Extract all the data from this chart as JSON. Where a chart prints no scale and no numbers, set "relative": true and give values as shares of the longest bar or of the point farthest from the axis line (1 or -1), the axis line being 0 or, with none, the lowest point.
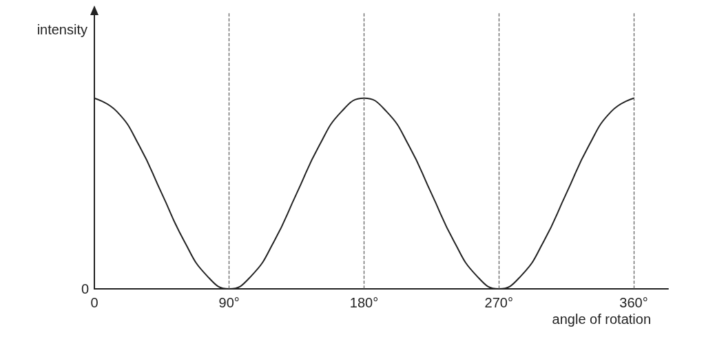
{
  "chart_data": {
    "type": "line",
    "xlabel": "angle of rotation",
    "ylabel": "intensity",
    "relative": true,
    "x": [
      0,
      15,
      30,
      45,
      60,
      75,
      90,
      105,
      120,
      135,
      150,
      165,
      180,
      195,
      210,
      225,
      240,
      255,
      270,
      285,
      300,
      315,
      330,
      345,
      360
    ],
    "series": [
      {
        "color": "#222222",
        "values": [
          1,
          0.93,
          0.75,
          0.5,
          0.25,
          0.07,
          0,
          0.07,
          0.25,
          0.5,
          0.75,
          0.93,
          1,
          0.93,
          0.75,
          0.5,
          0.25,
          0.07,
          0,
          0.07,
          0.25,
          0.5,
          0.75,
          0.93,
          1
        ]
      }
    ],
    "xlim": [
      0,
      383
    ],
    "xticks": [
      0,
      {
        "value": 90,
        "label": "90°"
      },
      {
        "value": 180,
        "label": "180°"
      },
      {
        "value": 270,
        "label": "270°"
      },
      {
        "value": 360,
        "label": "360°"
      }
    ],
    "ref_lines": [
      {
        "axis": "x",
        "value": 90,
        "color": "#555555",
        "line_style": "dashed"
      },
      {
        "axis": "x",
        "value": 180,
        "color": "#555555",
        "line_style": "dashed"
      },
      {
        "axis": "x",
        "value": 270,
        "color": "#555555",
        "line_style": "dashed"
      },
      {
        "axis": "x",
        "value": 360,
        "color": "#555555",
        "line_style": "dashed"
      }
    ],
    "annotations": [
      "0"
    ],
    "grid": false,
    "marker": "none",
    "line_style": "solid"
  }
}
